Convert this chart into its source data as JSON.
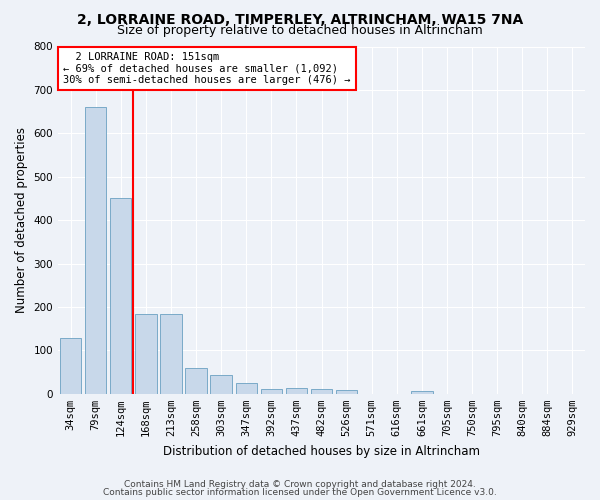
{
  "title1": "2, LORRAINE ROAD, TIMPERLEY, ALTRINCHAM, WA15 7NA",
  "title2": "Size of property relative to detached houses in Altrincham",
  "xlabel": "Distribution of detached houses by size in Altrincham",
  "ylabel": "Number of detached properties",
  "bar_color": "#c8d8ea",
  "bar_edge_color": "#7aaac8",
  "categories": [
    "34sqm",
    "79sqm",
    "124sqm",
    "168sqm",
    "213sqm",
    "258sqm",
    "303sqm",
    "347sqm",
    "392sqm",
    "437sqm",
    "482sqm",
    "526sqm",
    "571sqm",
    "616sqm",
    "661sqm",
    "705sqm",
    "750sqm",
    "795sqm",
    "840sqm",
    "884sqm",
    "929sqm"
  ],
  "values": [
    128,
    660,
    450,
    183,
    183,
    60,
    43,
    25,
    12,
    13,
    11,
    8,
    0,
    0,
    7,
    0,
    0,
    0,
    0,
    0,
    0
  ],
  "ylim": [
    0,
    800
  ],
  "yticks": [
    0,
    100,
    200,
    300,
    400,
    500,
    600,
    700,
    800
  ],
  "vline_x": 2.5,
  "annotation_text": "  2 LORRAINE ROAD: 151sqm\n← 69% of detached houses are smaller (1,092)\n30% of semi-detached houses are larger (476) →",
  "annotation_box_color": "white",
  "annotation_box_edgecolor": "red",
  "footer1": "Contains HM Land Registry data © Crown copyright and database right 2024.",
  "footer2": "Contains public sector information licensed under the Open Government Licence v3.0.",
  "bg_color": "#eef2f8",
  "plot_bg_color": "#eef2f8",
  "grid_color": "white",
  "title1_fontsize": 10,
  "title2_fontsize": 9,
  "xlabel_fontsize": 8.5,
  "ylabel_fontsize": 8.5,
  "tick_fontsize": 7.5,
  "footer_fontsize": 6.5,
  "annotation_fontsize": 7.5
}
